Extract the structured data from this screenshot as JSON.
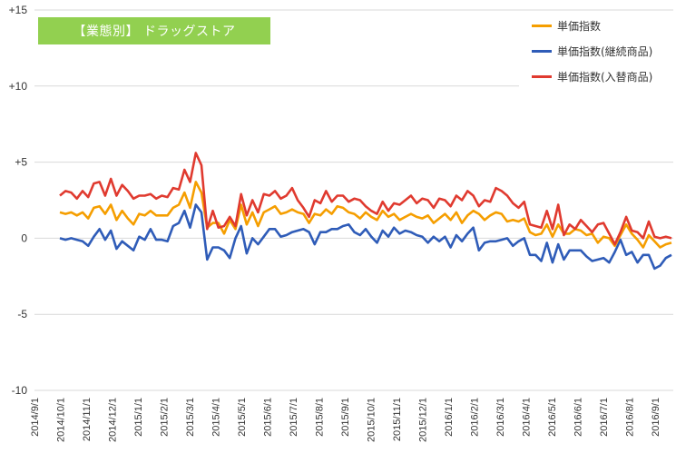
{
  "title": "【業態別】 ドラッグストア",
  "colors": {
    "title_bg": "#92d050",
    "series": [
      "#f59e00",
      "#2f5cb8",
      "#e03a2f"
    ]
  },
  "chart_data": {
    "type": "line",
    "title": "【業態別】 ドラッグストア",
    "xlabel": "",
    "ylabel": "",
    "ylim": [
      -10,
      15
    ],
    "y_ticks": [
      "+15",
      "+10",
      "+5",
      "0",
      "-5",
      "-10"
    ],
    "y_tick_values": [
      15,
      10,
      5,
      0,
      -5,
      -10
    ],
    "x_ticks": [
      "2014/9/1",
      "2014/10/1",
      "2014/11/1",
      "2014/12/1",
      "2015/1/1",
      "2015/2/1",
      "2015/3/1",
      "2015/4/1",
      "2015/5/1",
      "2015/6/1",
      "2015/7/1",
      "2015/8/1",
      "2015/9/1",
      "2015/10/1",
      "2015/11/1",
      "2015/12/1",
      "2016/1/1",
      "2016/2/1",
      "2016/3/1",
      "2016/4/1",
      "2016/5/1",
      "2016/6/1",
      "2016/7/1",
      "2016/8/1",
      "2016/9/1"
    ],
    "grid": true,
    "legend_position": "top-right",
    "series": [
      {
        "name": "単価指数",
        "color": "#f59e00",
        "values": [
          1.7,
          1.6,
          1.7,
          1.5,
          1.7,
          1.3,
          2.0,
          2.1,
          1.6,
          2.2,
          1.2,
          1.8,
          1.3,
          0.9,
          1.6,
          1.5,
          1.8,
          1.5,
          1.5,
          1.5,
          2.0,
          2.2,
          3.0,
          2.0,
          3.7,
          3.0,
          0.7,
          1.0,
          1.0,
          0.3,
          1.2,
          0.6,
          2.2,
          0.9,
          1.7,
          0.8,
          1.7,
          1.9,
          2.1,
          1.6,
          1.7,
          1.9,
          1.7,
          1.6,
          1.0,
          1.6,
          1.5,
          1.9,
          1.6,
          2.1,
          2.0,
          1.7,
          1.6,
          1.3,
          1.7,
          1.4,
          1.2,
          1.8,
          1.4,
          1.6,
          1.2,
          1.4,
          1.6,
          1.4,
          1.3,
          1.5,
          1.0,
          1.3,
          1.6,
          1.2,
          1.7,
          1.0,
          1.5,
          1.8,
          1.6,
          1.2,
          1.5,
          1.7,
          1.6,
          1.1,
          1.2,
          1.1,
          1.3,
          0.4,
          0.2,
          0.3,
          0.9,
          0.1,
          0.9,
          0.3,
          0.3,
          0.6,
          0.5,
          0.2,
          0.3,
          -0.3,
          0.1,
          0.0,
          -0.5,
          0.2,
          0.9,
          0.3,
          -0.1,
          -0.6,
          0.2,
          -0.2,
          -0.6,
          -0.4,
          -0.3
        ]
      },
      {
        "name": "単価指数(継続商品)",
        "color": "#2f5cb8",
        "values": [
          0.0,
          -0.1,
          0.0,
          -0.1,
          -0.2,
          -0.5,
          0.1,
          0.6,
          -0.1,
          0.5,
          -0.7,
          -0.2,
          -0.5,
          -0.8,
          0.1,
          -0.1,
          0.6,
          -0.1,
          -0.1,
          -0.2,
          0.8,
          1.0,
          1.8,
          0.7,
          2.2,
          1.7,
          -1.4,
          -0.6,
          -0.6,
          -0.8,
          -1.3,
          0.0,
          0.8,
          -1.0,
          0.0,
          -0.4,
          0.1,
          0.6,
          0.6,
          0.1,
          0.2,
          0.4,
          0.5,
          0.6,
          0.4,
          -0.4,
          0.4,
          0.4,
          0.6,
          0.6,
          0.8,
          0.9,
          0.4,
          0.2,
          0.6,
          0.1,
          -0.3,
          0.5,
          0.1,
          0.7,
          0.3,
          0.5,
          0.4,
          0.2,
          0.1,
          -0.3,
          0.1,
          -0.2,
          0.1,
          -0.6,
          0.2,
          -0.2,
          0.3,
          0.7,
          -0.8,
          -0.3,
          -0.2,
          -0.2,
          -0.1,
          0.0,
          -0.5,
          -0.2,
          0.0,
          -1.1,
          -1.1,
          -1.5,
          -0.3,
          -1.6,
          -0.4,
          -1.4,
          -0.8,
          -0.8,
          -0.8,
          -1.2,
          -1.5,
          -1.4,
          -1.3,
          -1.6,
          -0.9,
          -0.1,
          -1.1,
          -0.9,
          -1.6,
          -1.1,
          -1.1,
          -2.0,
          -1.8,
          -1.3,
          -1.1
        ]
      },
      {
        "name": "単価指数(入替商品)",
        "color": "#e03a2f",
        "values": [
          2.8,
          3.1,
          3.0,
          2.6,
          3.1,
          2.7,
          3.6,
          3.7,
          2.8,
          3.9,
          2.8,
          3.5,
          3.1,
          2.6,
          2.8,
          2.8,
          2.9,
          2.6,
          2.8,
          2.7,
          3.3,
          3.2,
          4.5,
          3.7,
          5.6,
          4.8,
          0.6,
          1.8,
          0.7,
          0.8,
          1.4,
          0.8,
          2.9,
          1.5,
          2.5,
          1.7,
          2.9,
          2.8,
          3.1,
          2.6,
          2.8,
          3.3,
          2.5,
          2.0,
          1.4,
          2.5,
          2.3,
          3.1,
          2.4,
          2.8,
          2.8,
          2.4,
          2.6,
          2.5,
          2.1,
          1.8,
          1.6,
          2.4,
          1.8,
          2.3,
          2.2,
          2.5,
          2.8,
          2.3,
          2.6,
          2.5,
          2.0,
          2.6,
          2.5,
          2.1,
          2.8,
          2.5,
          3.1,
          2.8,
          2.1,
          2.5,
          2.4,
          3.3,
          3.1,
          2.8,
          2.3,
          2.0,
          2.4,
          0.9,
          0.8,
          0.7,
          1.8,
          0.6,
          2.2,
          0.2,
          0.9,
          0.6,
          1.2,
          0.8,
          0.4,
          0.9,
          1.0,
          0.3,
          -0.4,
          0.4,
          1.4,
          0.5,
          0.4,
          0.0,
          1.1,
          0.1,
          0.0,
          0.1,
          0.0
        ]
      }
    ]
  }
}
